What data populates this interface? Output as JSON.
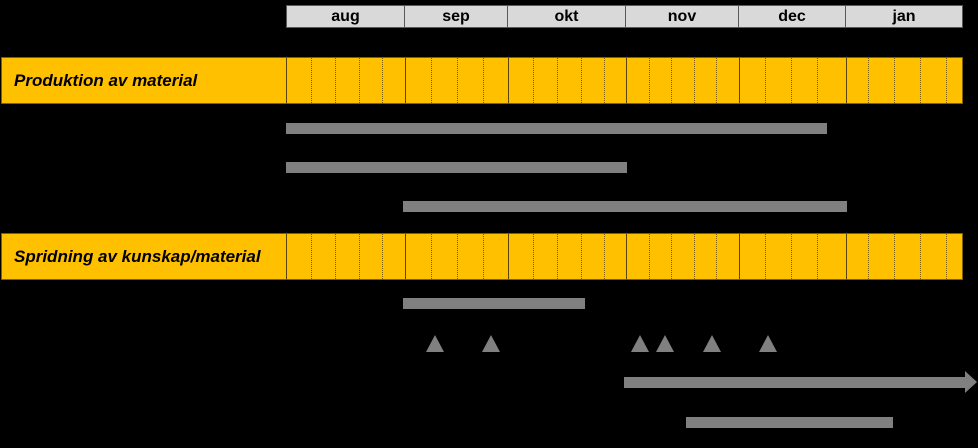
{
  "months": [
    "aug",
    "sep",
    "okt",
    "nov",
    "dec",
    "jan"
  ],
  "sections": [
    {
      "label": "Produktion av material"
    },
    {
      "label": "Spridning av kunskap/material"
    }
  ],
  "colors": {
    "background": "#000000",
    "band": "#ffc000",
    "bar": "#808080",
    "month_header": "#d9d9d9"
  },
  "milestone_icon": "triangle-up",
  "arrow_icon": "right-arrow"
}
